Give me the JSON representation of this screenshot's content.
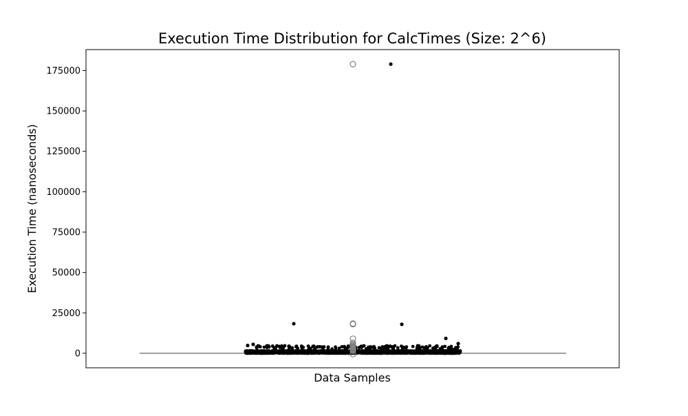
{
  "chart_data": {
    "type": "scatter",
    "subtype": "box-with-strip",
    "title": "Execution Time Distribution for CalcTimes (Size: 2^6)",
    "xlabel": "Data Samples",
    "ylabel": "Execution Time (nanoseconds)",
    "ylim": [
      -9000,
      188000
    ],
    "yticks": [
      0,
      25000,
      50000,
      75000,
      100000,
      125000,
      150000,
      175000
    ],
    "ytick_labels": [
      "0",
      "25000",
      "50000",
      "75000",
      "100000",
      "125000",
      "150000",
      "175000"
    ],
    "grid": false,
    "box": {
      "q1": 0,
      "median": 0,
      "q3": 0,
      "whisker_low": 0,
      "whisker_high": 0,
      "color": "#808080",
      "outliers": [
        179000,
        18400,
        18000,
        9000,
        6500,
        5500,
        4800,
        4300,
        3800,
        3400,
        2900,
        2400,
        2000,
        1500,
        -600
      ]
    },
    "points": {
      "color": "#000000",
      "cluster_value": 0,
      "notable_values": [
        179000,
        18300,
        17900,
        9200,
        6000,
        5500,
        4800,
        4600,
        4400,
        4200,
        4000,
        3800,
        3600,
        3400,
        3200,
        3000,
        2800,
        2600,
        2400
      ]
    }
  }
}
